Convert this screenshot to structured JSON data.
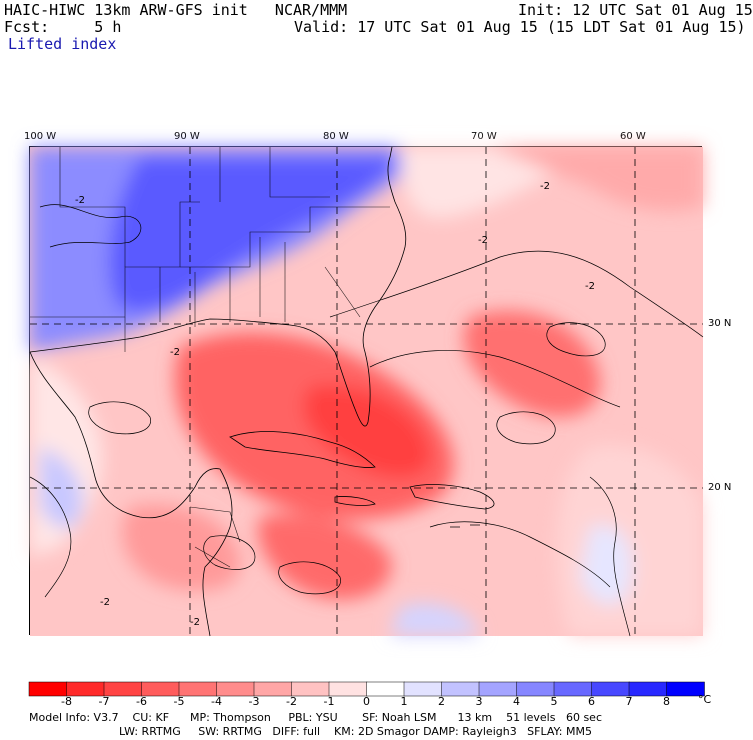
{
  "header": {
    "title": "HAIC-HIWC 13km ARW-GFS init   NCAR/MMM",
    "init": "Init: 12 UTC Sat 01 Aug 15",
    "fcst": "Fcst:     5 h",
    "valid": "Valid: 17 UTC Sat 01 Aug 15 (15 LDT Sat 01 Aug 15)",
    "field": "Lifted index"
  },
  "map": {
    "lon_labels": [
      "100 W",
      "90 W",
      "80 W",
      "70 W",
      "60 W"
    ],
    "lat_labels": [
      "30 N",
      "20 N"
    ],
    "contour_label": "-2"
  },
  "colorbar": {
    "labels": [
      "-8",
      "-7",
      "-6",
      "-5",
      "-4",
      "-3",
      "-2",
      "-1",
      "0",
      "1",
      "2",
      "3",
      "4",
      "5",
      "6",
      "7",
      "8"
    ],
    "unit": "°C",
    "colors": [
      "#ff0000",
      "#ff2a2a",
      "#ff4444",
      "#ff5c5c",
      "#ff7474",
      "#ff8c8c",
      "#ffa6a6",
      "#ffc2c2",
      "#ffe2e2",
      "#ffffff",
      "#e2e2ff",
      "#c2c2ff",
      "#a4a4ff",
      "#8686ff",
      "#6868ff",
      "#4848ff",
      "#2828ff",
      "#0000ff"
    ]
  },
  "model_info": {
    "line1": "Model Info: V3.7    CU: KF      MP: Thompson     PBL: YSU       SF: Noah LSM      13 km    51 levels   60 sec",
    "line2": "LW: RRTMG     SW: RRTMG   DIFF: full    KM: 2D Smagor DAMP: Rayleigh3   SFLAY: MM5"
  }
}
